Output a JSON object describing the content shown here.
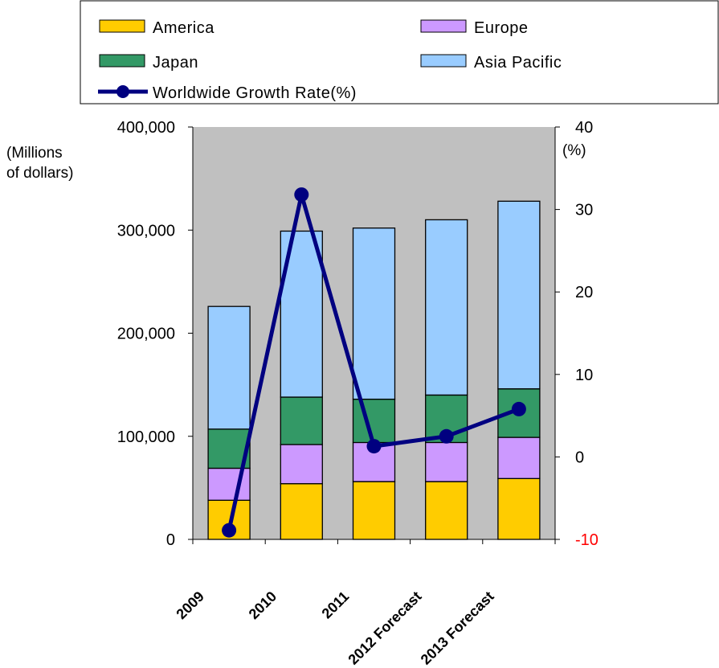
{
  "chart_data": {
    "type": "bar",
    "stacked": true,
    "categories": [
      "2009",
      "2010",
      "2011",
      "2012 Forecast",
      "2013 Forecast"
    ],
    "series": [
      {
        "name": "America",
        "color": "#FFCC00",
        "values": [
          38000,
          54000,
          56000,
          56000,
          59000
        ]
      },
      {
        "name": "Europe",
        "color": "#CC99FF",
        "values": [
          31000,
          38000,
          38000,
          38000,
          40000
        ]
      },
      {
        "name": "Japan",
        "color": "#339966",
        "values": [
          38000,
          46000,
          42000,
          46000,
          47000
        ]
      },
      {
        "name": "Asia Pacific",
        "color": "#99CCFF",
        "values": [
          119000,
          161000,
          166000,
          170000,
          182000
        ]
      }
    ],
    "line_series": {
      "name": "Worldwide Growth Rate(%)",
      "color": "#000080",
      "axis": "right",
      "values": [
        -8.9,
        31.8,
        1.3,
        2.5,
        5.8
      ]
    },
    "y_left": {
      "ylim": [
        0,
        400000
      ],
      "ticks": [
        "0",
        "100,000",
        "200,000",
        "300,000",
        "400,000"
      ],
      "unit_line1": "(Millions",
      "unit_line2": "of dollars)"
    },
    "y_right": {
      "ylim": [
        -10,
        40
      ],
      "ticks": [
        "-10",
        "0",
        "10",
        "20",
        "30",
        "40"
      ],
      "negative_color": "#FF0000",
      "unit": "(%)"
    },
    "plot_background": "#C0C0C0",
    "grid": false,
    "legend_position": "top",
    "title": "",
    "xlabel": ""
  }
}
